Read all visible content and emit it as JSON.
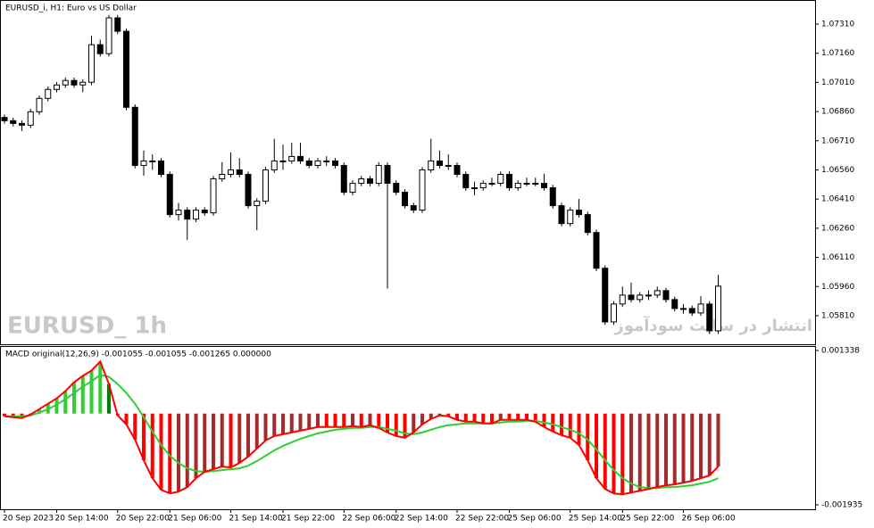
{
  "chart_data": [
    {
      "type": "candlestick",
      "title": "EURUSD_i, H1:  Euro vs US Dollar",
      "watermark": "EURUSD_ 1h",
      "annotation": "انتشار در سایت سودآموز",
      "up_color": "#ffffff",
      "down_color": "#000000",
      "categories": [
        "20 Sep 2023",
        null,
        null,
        null,
        null,
        null,
        "20 Sep 14:00",
        null,
        null,
        null,
        null,
        null,
        null,
        "20 Sep 22:00",
        null,
        null,
        null,
        null,
        null,
        "21 Sep 06:00",
        null,
        null,
        null,
        null,
        null,
        null,
        "21 Sep 14:00",
        null,
        null,
        null,
        null,
        null,
        "21 Sep 22:00",
        null,
        null,
        null,
        null,
        null,
        null,
        "22 Sep 06:00",
        null,
        null,
        null,
        null,
        null,
        "22 Sep 14:00",
        null,
        null,
        null,
        null,
        null,
        null,
        "22 Sep 22:00",
        null,
        null,
        null,
        null,
        null,
        "25 Sep 06:00",
        null,
        null,
        null,
        null,
        null,
        null,
        "25 Sep 14:00",
        null,
        null,
        null,
        null,
        null,
        "25 Sep 22:00",
        null,
        null,
        null,
        null,
        null,
        null,
        "26 Sep 06:00",
        null,
        null,
        null,
        null
      ],
      "open": [
        1.0683,
        1.06813,
        1.06799,
        1.0679,
        1.06859,
        1.06928,
        1.06974,
        1.06997,
        1.0702,
        1.06997,
        1.07011,
        1.07204,
        1.07158,
        1.07342,
        1.07273,
        1.06882,
        1.06583,
        1.06606,
        1.06606,
        1.06537,
        1.0633,
        1.06353,
        1.06307,
        1.06353,
        1.06339,
        1.06514,
        1.06537,
        1.0656,
        1.06537,
        1.06376,
        1.06399,
        1.0656,
        1.06606,
        1.06606,
        1.06629,
        1.06606,
        1.06583,
        1.06606,
        1.06606,
        1.06583,
        1.06445,
        1.06491,
        1.06514,
        1.06491,
        1.06583,
        1.06491,
        1.06445,
        1.06376,
        1.06353,
        1.0656,
        1.06606,
        1.06583,
        1.06583,
        1.06537,
        1.06468,
        1.06468,
        1.06491,
        1.06491,
        1.06537,
        1.06468,
        1.06491,
        1.06491,
        1.06491,
        1.06468,
        1.06376,
        1.06284,
        1.06353,
        1.0633,
        1.06238,
        1.06054,
        1.05778,
        1.0587,
        1.05916,
        1.05893,
        1.05916,
        1.05916,
        1.05939,
        1.05893,
        1.05847,
        1.05847,
        1.05824,
        1.0587,
        1.05732
      ],
      "high": [
        1.06845,
        1.06828,
        1.06814,
        1.06874,
        1.06943,
        1.06989,
        1.07012,
        1.07035,
        1.07035,
        1.07026,
        1.0725,
        1.0723,
        1.07357,
        1.07357,
        1.07288,
        1.06897,
        1.0666,
        1.0664,
        1.06621,
        1.06552,
        1.0639,
        1.06368,
        1.06368,
        1.06368,
        1.06529,
        1.066,
        1.0665,
        1.0662,
        1.06552,
        1.06414,
        1.06575,
        1.0672,
        1.0669,
        1.067,
        1.067,
        1.06621,
        1.06621,
        1.0663,
        1.06621,
        1.06598,
        1.06506,
        1.06529,
        1.06529,
        1.066,
        1.06598,
        1.06506,
        1.0646,
        1.06391,
        1.06575,
        1.0672,
        1.0666,
        1.0664,
        1.06598,
        1.06552,
        1.065,
        1.06506,
        1.0652,
        1.06552,
        1.06552,
        1.06506,
        1.0652,
        1.0652,
        1.0654,
        1.06483,
        1.06391,
        1.06368,
        1.0641,
        1.06345,
        1.06253,
        1.06069,
        1.05885,
        1.0596,
        1.0598,
        1.05931,
        1.0594,
        1.0596,
        1.05954,
        1.05908,
        1.0587,
        1.05862,
        1.0591,
        1.05885,
        1.0602
      ],
      "low": [
        1.06798,
        1.06784,
        1.0676,
        1.06775,
        1.06844,
        1.06913,
        1.06959,
        1.06982,
        1.06982,
        1.0696,
        1.06996,
        1.07143,
        1.07143,
        1.07258,
        1.06867,
        1.06568,
        1.0653,
        1.0656,
        1.06522,
        1.06315,
        1.063,
        1.062,
        1.06292,
        1.06324,
        1.06324,
        1.06499,
        1.06522,
        1.06522,
        1.06361,
        1.0625,
        1.06384,
        1.06545,
        1.0656,
        1.06591,
        1.06591,
        1.06568,
        1.06568,
        1.0658,
        1.06568,
        1.0643,
        1.0643,
        1.06476,
        1.06476,
        1.06476,
        1.0595,
        1.0643,
        1.06361,
        1.06338,
        1.06338,
        1.06545,
        1.06568,
        1.0656,
        1.06522,
        1.06453,
        1.0643,
        1.06453,
        1.06476,
        1.06476,
        1.06453,
        1.06453,
        1.06476,
        1.06476,
        1.06453,
        1.06361,
        1.06269,
        1.06269,
        1.06315,
        1.06223,
        1.06039,
        1.05763,
        1.05763,
        1.05855,
        1.05878,
        1.05878,
        1.0589,
        1.05901,
        1.05878,
        1.05832,
        1.0582,
        1.05809,
        1.05809,
        1.05717,
        1.05717
      ],
      "close": [
        1.06813,
        1.06799,
        1.0679,
        1.06859,
        1.06928,
        1.06974,
        1.06997,
        1.0702,
        1.06997,
        1.07011,
        1.07204,
        1.07158,
        1.07342,
        1.07273,
        1.06882,
        1.06583,
        1.06606,
        1.06606,
        1.06537,
        1.0633,
        1.06353,
        1.06307,
        1.06353,
        1.06339,
        1.06514,
        1.06537,
        1.0656,
        1.06537,
        1.06376,
        1.06399,
        1.0656,
        1.06606,
        1.06606,
        1.06629,
        1.06606,
        1.06583,
        1.06606,
        1.06606,
        1.06583,
        1.06445,
        1.06491,
        1.06514,
        1.06491,
        1.06583,
        1.06491,
        1.06445,
        1.06376,
        1.06353,
        1.0656,
        1.06606,
        1.06583,
        1.06583,
        1.06537,
        1.06468,
        1.06468,
        1.06491,
        1.06491,
        1.06537,
        1.06468,
        1.06491,
        1.06491,
        1.06491,
        1.06468,
        1.06376,
        1.06284,
        1.06353,
        1.0633,
        1.06238,
        1.06054,
        1.05778,
        1.0587,
        1.05916,
        1.05893,
        1.05916,
        1.05916,
        1.05939,
        1.05893,
        1.05847,
        1.05847,
        1.05824,
        1.0587,
        1.05732,
        1.05962
      ],
      "ylim": [
        1.05663,
        1.07434
      ],
      "yticks": [
        {
          "value": 1.0731,
          "label": "1.07310"
        },
        {
          "value": 1.0716,
          "label": "1.07160"
        },
        {
          "value": 1.0701,
          "label": "1.07010"
        },
        {
          "value": 1.0686,
          "label": "1.06860"
        },
        {
          "value": 1.0671,
          "label": "1.06710"
        },
        {
          "value": 1.0656,
          "label": "1.06560"
        },
        {
          "value": 1.0641,
          "label": "1.06410"
        },
        {
          "value": 1.0626,
          "label": "1.06260"
        },
        {
          "value": 1.0611,
          "label": "1.06110"
        },
        {
          "value": 1.0596,
          "label": "1.05960"
        },
        {
          "value": 1.0581,
          "label": "1.05810"
        }
      ]
    },
    {
      "type": "macd",
      "title": "MACD original(12,26,9) -0.001055 -0.001055 -0.001265 0.000000",
      "bar_colors": [
        "#32cd32",
        "#008000",
        "#ff0000",
        "#a52a2a"
      ],
      "line_color": "#ff0000",
      "values": [
        -5.7e-05,
        -7.6e-05,
        -9.5e-05,
        -1.9e-05,
        9.5e-05,
        0.000209,
        0.000324,
        0.000476,
        0.000666,
        0.000799,
        0.000913,
        0.001104,
        0.000628,
        -3.8e-05,
        -0.000228,
        -0.000552,
        -0.00099,
        -0.00137,
        -0.001618,
        -0.001694,
        -0.001656,
        -0.00156,
        -0.00137,
        -0.001237,
        -0.00118,
        -0.001123,
        -0.001142,
        -0.001047,
        -0.000913,
        -0.000742,
        -0.000571,
        -0.000476,
        -0.000438,
        -0.0004,
        -0.000362,
        -0.000324,
        -0.000285,
        -0.000285,
        -0.000285,
        -0.000285,
        -0.000266,
        -0.000285,
        -0.000247,
        -0.000304,
        -0.0004,
        -0.000476,
        -0.000514,
        -0.0004,
        -0.000228,
        -0.000114,
        -3.8e-05,
        -5.7e-05,
        -0.000133,
        -0.000171,
        -0.000171,
        -0.000209,
        -0.000209,
        -0.000133,
        -0.000133,
        -0.000133,
        -0.000133,
        -0.000171,
        -0.000285,
        -0.000381,
        -0.000457,
        -0.000514,
        -0.000666,
        -0.00099,
        -0.00137,
        -0.001599,
        -0.001694,
        -0.001713,
        -0.001675,
        -0.001637,
        -0.001599,
        -0.00156,
        -0.001522,
        -0.001503,
        -0.001465,
        -0.001427,
        -0.00137,
        -0.001313,
        -0.001123
      ],
      "signal": {
        "color": "#32cd32",
        "values": [
          -5.7e-05,
          -5.7e-05,
          -5.7e-05,
          -3.8e-05,
          1.9e-05,
          9.5e-05,
          0.00019,
          0.000304,
          0.000438,
          0.000571,
          0.000685,
          0.000818,
          0.00078,
          0.000628,
          0.000438,
          0.000209,
          -7.6e-05,
          -0.000381,
          -0.000666,
          -0.000894,
          -0.001047,
          -0.001161,
          -0.001218,
          -0.001237,
          -0.001218,
          -0.001199,
          -0.00118,
          -0.001161,
          -0.001104,
          -0.001009,
          -0.000894,
          -0.00078,
          -0.000685,
          -0.000609,
          -0.000533,
          -0.000476,
          -0.000419,
          -0.000381,
          -0.000343,
          -0.000324,
          -0.000304,
          -0.000304,
          -0.000285,
          -0.000285,
          -0.000324,
          -0.000362,
          -0.000419,
          -0.000438,
          -0.0004,
          -0.000343,
          -0.000285,
          -0.000247,
          -0.000228,
          -0.000209,
          -0.000209,
          -0.000209,
          -0.000209,
          -0.00019,
          -0.000171,
          -0.000171,
          -0.000152,
          -0.000152,
          -0.00019,
          -0.000228,
          -0.000285,
          -0.000343,
          -0.000419,
          -0.000552,
          -0.000761,
          -0.00099,
          -0.001199,
          -0.00137,
          -0.001484,
          -0.00156,
          -0.00158,
          -0.00158,
          -0.00156,
          -0.00156,
          -0.001541,
          -0.001522,
          -0.001484,
          -0.001446,
          -0.00137
        ]
      },
      "ylim": [
        -0.00203,
        0.001433
      ],
      "yticks": [
        0.001338,
        -0.001935
      ]
    }
  ]
}
